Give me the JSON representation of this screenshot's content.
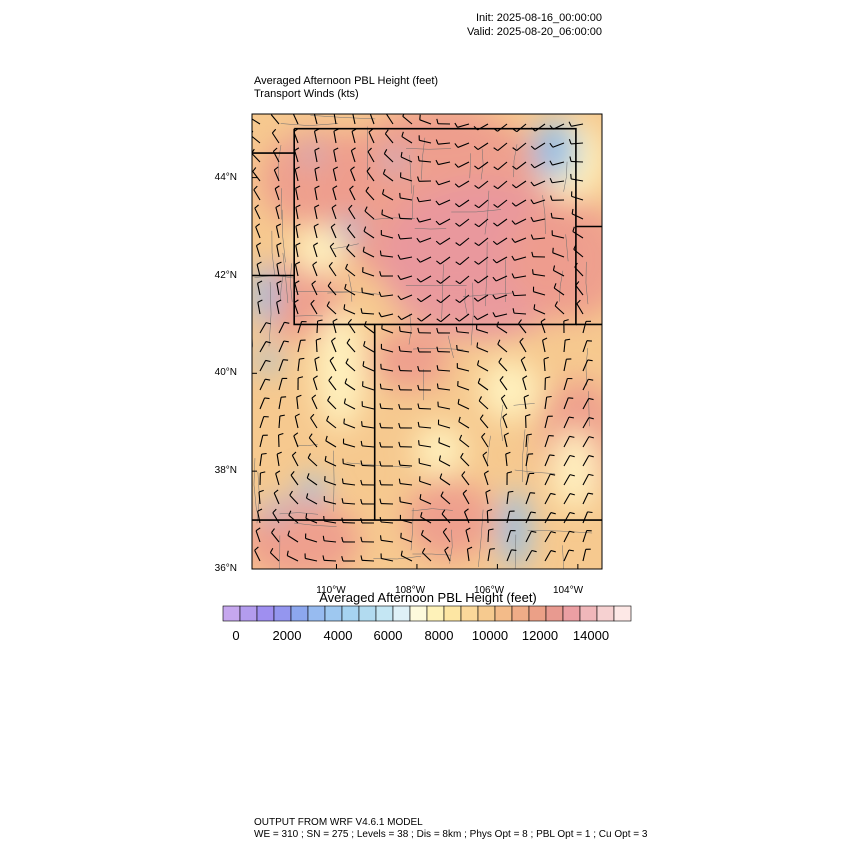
{
  "header": {
    "init": "Init: 2025-08-16_00:00:00",
    "valid": "Valid: 2025-08-20_06:00:00"
  },
  "plot": {
    "title": "Averaged Afternoon PBL Height   (feet)",
    "subtitle": "Transport Winds   (kts)"
  },
  "map": {
    "lat_range": [
      36,
      45.3
    ],
    "lon_range": [
      -112.1,
      -103.4
    ],
    "lat_labels": [
      "44°N",
      "42°N",
      "40°N",
      "38°N",
      "36°N"
    ],
    "lat_values": [
      44,
      42,
      40,
      38,
      36
    ],
    "lon_labels": [
      "110°W",
      "108°W",
      "106°W",
      "104°W"
    ],
    "lon_values": [
      -110,
      -108,
      -106,
      -104
    ],
    "field_colors": {
      "low": "#8fbde8",
      "mid_low": "#fff2c0",
      "mid": "#f7c98a",
      "high": "#ee9d8d",
      "very_high": "#e9989e"
    },
    "boundary_color": "#000000"
  },
  "colorbar": {
    "title": "Averaged Afternoon PBL Height  (feet)",
    "tick_labels": [
      "0",
      "2000",
      "4000",
      "6000",
      "8000",
      "10000",
      "12000",
      "14000"
    ],
    "tick_values": [
      0,
      2000,
      4000,
      6000,
      8000,
      10000,
      12000,
      14000
    ],
    "colors": [
      "#c6a7ee",
      "#b39cee",
      "#9f8ff0",
      "#9496ef",
      "#8ca7ee",
      "#97bbf0",
      "#9ec8f0",
      "#a6d3f0",
      "#b2dbf0",
      "#c4e6f3",
      "#dff1f7",
      "#fdfadc",
      "#fef2b9",
      "#fde6a3",
      "#fbd89a",
      "#f6ca8f",
      "#f3bb89",
      "#efac87",
      "#eba087",
      "#e89a90",
      "#eb9fa3",
      "#f0b7ba",
      "#f6d1d1",
      "#fde8e6"
    ]
  },
  "footer": {
    "line1": "OUTPUT FROM WRF V4.6.1 MODEL",
    "line2": "WE = 310 ; SN = 275 ; Levels = 38 ; Dis = 8km ; Phys Opt = 8 ; PBL Opt = 1 ; Cu Opt = 3"
  }
}
